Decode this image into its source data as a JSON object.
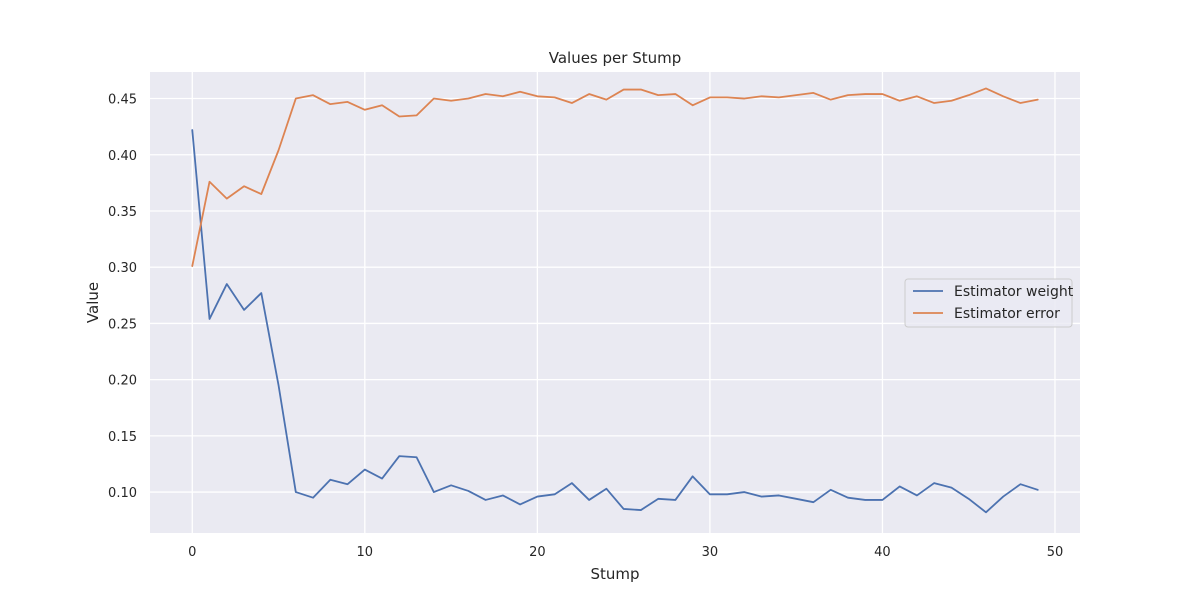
{
  "chart_data": {
    "type": "line",
    "title": "Values per Stump",
    "xlabel": "Stump",
    "ylabel": "Value",
    "xlim": [
      -2.45,
      51.45
    ],
    "ylim": [
      0.0636,
      0.4736
    ],
    "xticks": [
      0,
      10,
      20,
      30,
      40,
      50
    ],
    "yticks": [
      0.1,
      0.15,
      0.2,
      0.25,
      0.3,
      0.35,
      0.4,
      0.45
    ],
    "ytick_labels": [
      "0.10",
      "0.15",
      "0.20",
      "0.25",
      "0.30",
      "0.35",
      "0.40",
      "0.45"
    ],
    "grid": true,
    "legend_position": "center-right",
    "background_color": "#eaeaf2",
    "x": [
      0,
      1,
      2,
      3,
      4,
      5,
      6,
      7,
      8,
      9,
      10,
      11,
      12,
      13,
      14,
      15,
      16,
      17,
      18,
      19,
      20,
      21,
      22,
      23,
      24,
      25,
      26,
      27,
      28,
      29,
      30,
      31,
      32,
      33,
      34,
      35,
      36,
      37,
      38,
      39,
      40,
      41,
      42,
      43,
      44,
      45,
      46,
      47,
      48,
      49
    ],
    "series": [
      {
        "name": "Estimator weight",
        "color": "#4c72b0",
        "values": [
          0.422,
          0.254,
          0.285,
          0.262,
          0.277,
          0.195,
          0.1,
          0.095,
          0.111,
          0.107,
          0.12,
          0.112,
          0.132,
          0.131,
          0.1,
          0.106,
          0.101,
          0.093,
          0.097,
          0.089,
          0.096,
          0.098,
          0.108,
          0.093,
          0.103,
          0.085,
          0.084,
          0.094,
          0.093,
          0.114,
          0.098,
          0.098,
          0.1,
          0.096,
          0.097,
          0.094,
          0.091,
          0.102,
          0.095,
          0.093,
          0.093,
          0.105,
          0.097,
          0.108,
          0.104,
          0.094,
          0.082,
          0.096,
          0.107,
          0.102
        ]
      },
      {
        "name": "Estimator error",
        "color": "#dd8452",
        "values": [
          0.301,
          0.376,
          0.361,
          0.372,
          0.365,
          0.404,
          0.45,
          0.453,
          0.445,
          0.447,
          0.44,
          0.444,
          0.434,
          0.435,
          0.45,
          0.448,
          0.45,
          0.454,
          0.452,
          0.456,
          0.452,
          0.451,
          0.446,
          0.454,
          0.449,
          0.458,
          0.458,
          0.453,
          0.454,
          0.444,
          0.451,
          0.451,
          0.45,
          0.452,
          0.451,
          0.453,
          0.455,
          0.449,
          0.453,
          0.454,
          0.454,
          0.448,
          0.452,
          0.446,
          0.448,
          0.453,
          0.459,
          0.452,
          0.446,
          0.449
        ]
      }
    ]
  }
}
